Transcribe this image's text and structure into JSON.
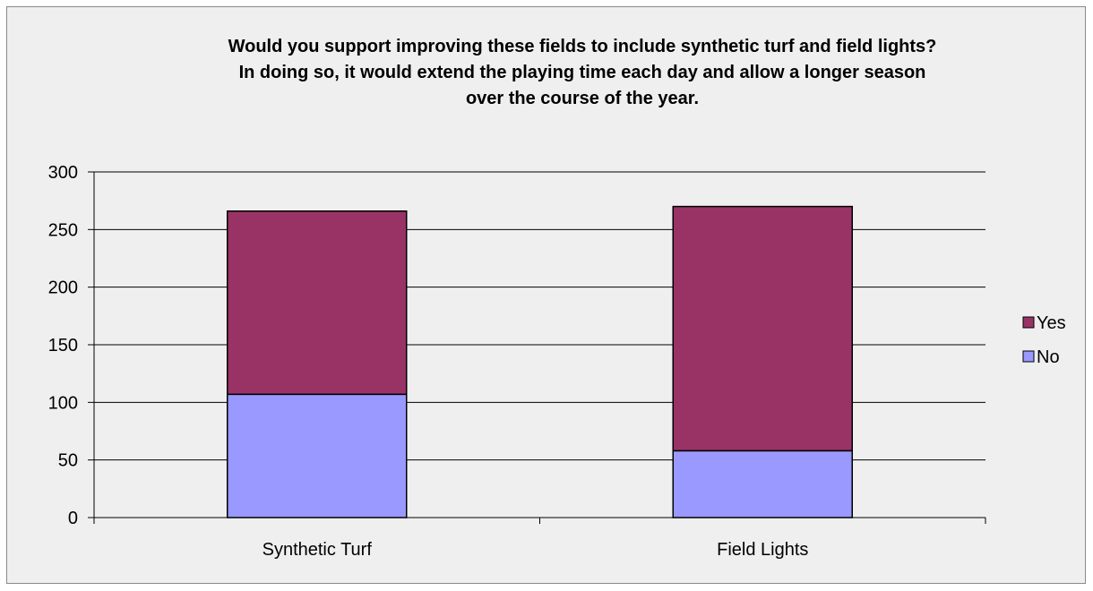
{
  "chart_data": {
    "type": "bar",
    "stacked": true,
    "title_lines": [
      "Would you support improving these fields to include synthetic turf and field lights?",
      "In doing so, it would extend the playing time each day and allow a longer season",
      "over the course of the year."
    ],
    "categories": [
      "Synthetic Turf",
      "Field Lights"
    ],
    "series": [
      {
        "name": "No",
        "values": [
          107,
          58
        ],
        "color": "#9999ff"
      },
      {
        "name": "Yes",
        "values": [
          159,
          212
        ],
        "color": "#993366"
      }
    ],
    "legend_order": [
      "Yes",
      "No"
    ],
    "legend_position": "right",
    "ylim": [
      0,
      300
    ],
    "yticks": [
      0,
      50,
      100,
      150,
      200,
      250,
      300
    ],
    "xlabel": "",
    "ylabel": "",
    "grid": true
  },
  "colors": {
    "background": "#efefef",
    "gridline": "#000000",
    "bar_outline": "#000000"
  }
}
